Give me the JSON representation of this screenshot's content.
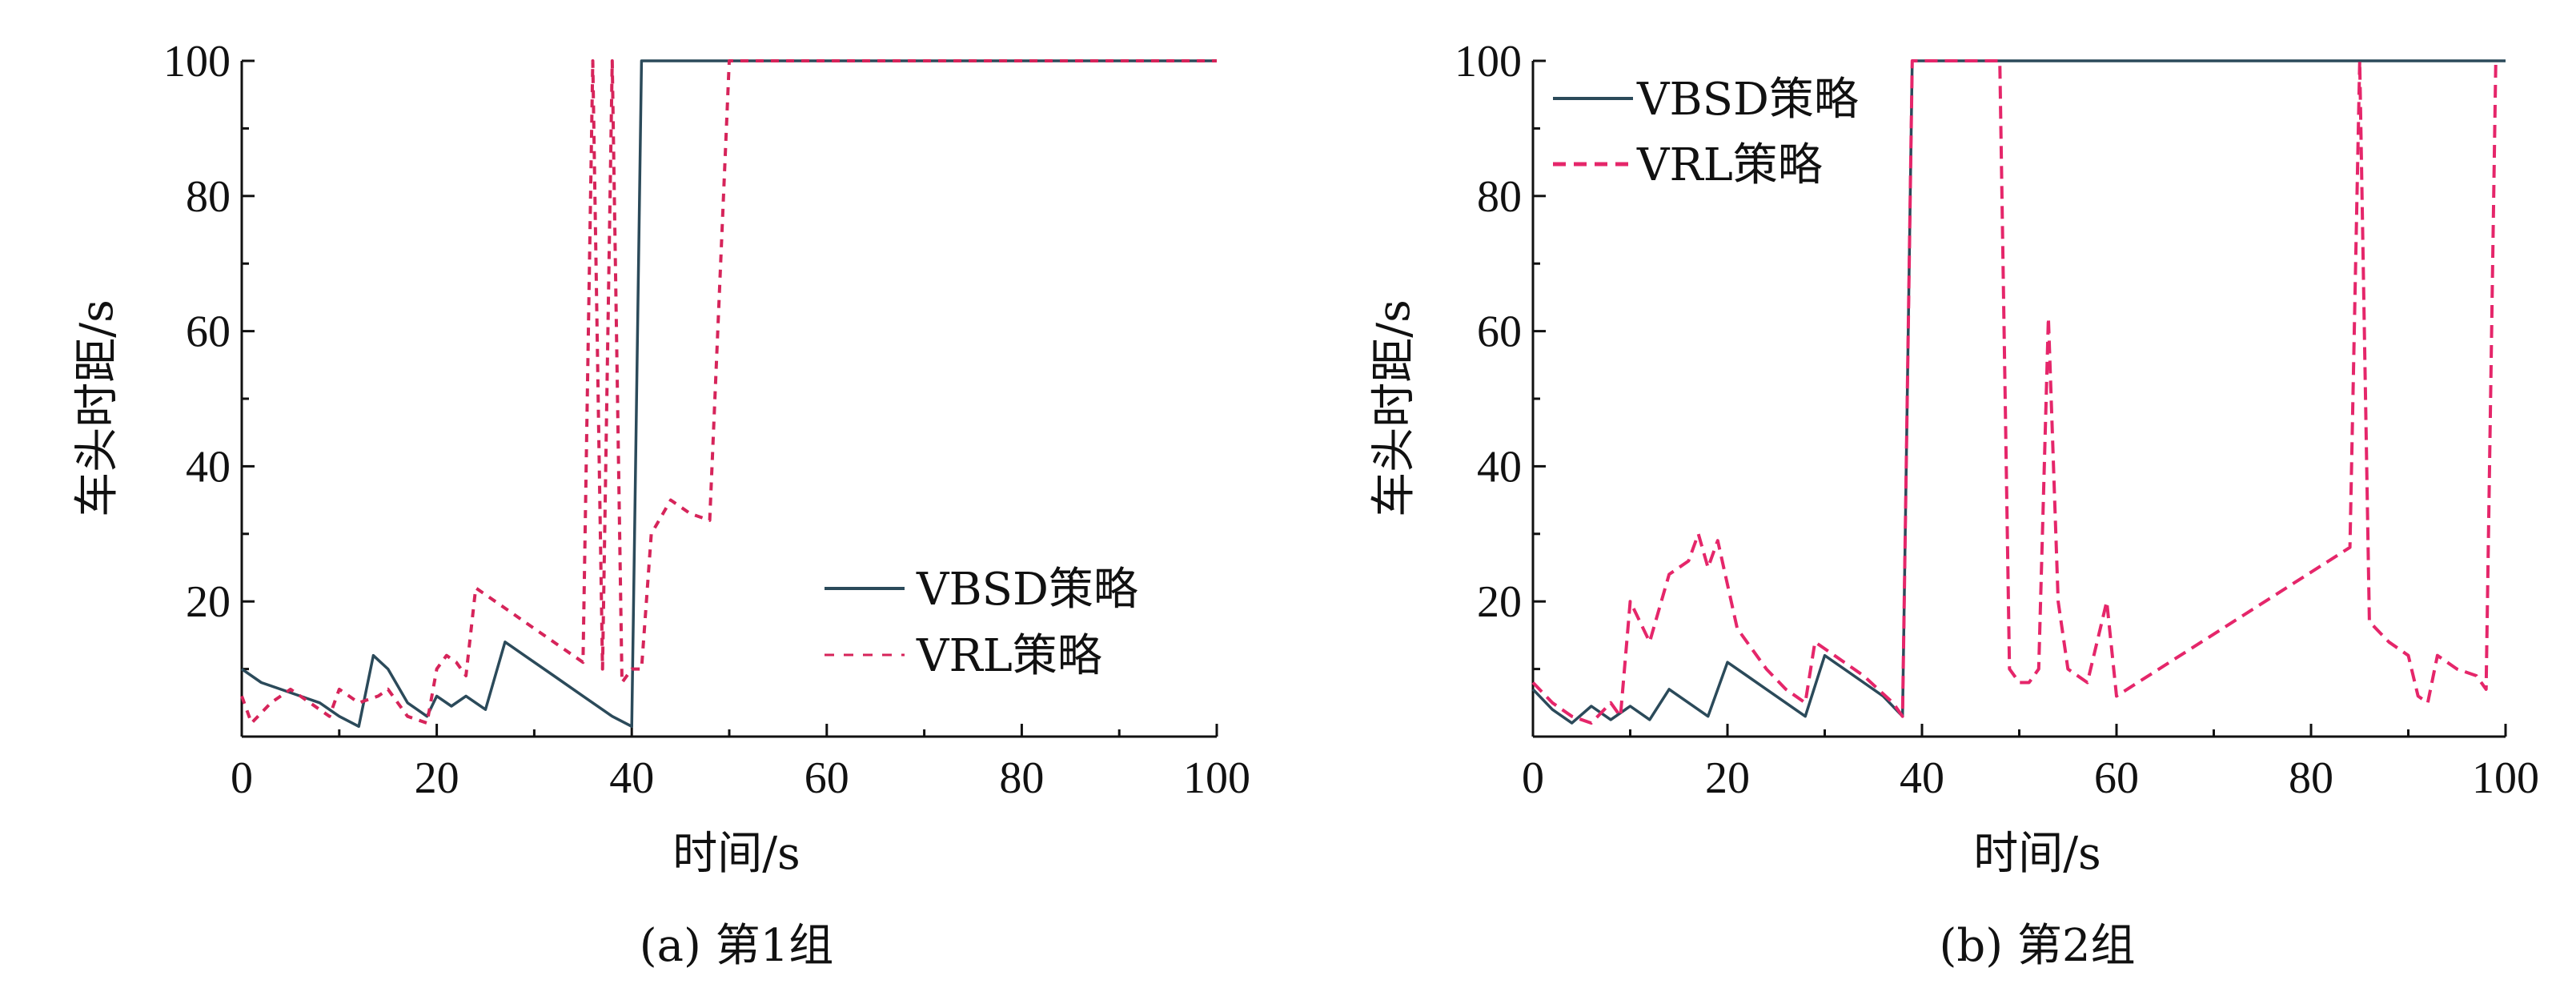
{
  "chart_data": [
    {
      "type": "line",
      "caption": "(a) 第1组",
      "xlabel": "时间/s",
      "ylabel": "车头时距/s",
      "xlim": [
        0,
        100
      ],
      "ylim": [
        0,
        100
      ],
      "xticks": [
        "0",
        "20",
        "40",
        "60",
        "80",
        "100"
      ],
      "yticks": [
        "20",
        "40",
        "60",
        "80",
        "100"
      ],
      "legend_position": "center-right",
      "series": [
        {
          "name": "VBSD策略",
          "color": "#2b4a5a",
          "style": "solid",
          "points": [
            [
              0,
              10
            ],
            [
              2,
              8
            ],
            [
              4,
              7
            ],
            [
              6,
              6
            ],
            [
              8,
              5
            ],
            [
              10,
              3
            ],
            [
              12,
              1.5
            ],
            [
              13.5,
              12
            ],
            [
              15,
              10
            ],
            [
              17,
              5
            ],
            [
              19,
              3
            ],
            [
              20,
              6
            ],
            [
              21.5,
              4.5
            ],
            [
              23,
              6
            ],
            [
              25,
              4
            ],
            [
              27,
              14
            ],
            [
              29,
              12
            ],
            [
              32,
              9
            ],
            [
              35,
              6
            ],
            [
              38,
              3
            ],
            [
              40,
              1.5
            ],
            [
              41,
              100
            ],
            [
              100,
              100
            ]
          ]
        },
        {
          "name": "VRL策略",
          "color": "#d6245a",
          "style": "dashed",
          "points": [
            [
              0,
              6
            ],
            [
              1,
              2
            ],
            [
              3,
              5
            ],
            [
              5,
              7
            ],
            [
              7,
              5
            ],
            [
              9,
              3
            ],
            [
              10,
              7
            ],
            [
              12,
              5
            ],
            [
              14,
              6
            ],
            [
              15,
              7
            ],
            [
              17,
              3
            ],
            [
              19,
              2
            ],
            [
              20,
              10
            ],
            [
              21,
              12
            ],
            [
              22,
              11
            ],
            [
              23,
              9
            ],
            [
              24,
              22
            ],
            [
              27,
              19
            ],
            [
              30,
              16
            ],
            [
              33,
              13
            ],
            [
              35,
              11
            ],
            [
              36,
              100
            ],
            [
              37,
              10
            ],
            [
              38,
              100
            ],
            [
              39,
              8
            ],
            [
              40,
              10
            ],
            [
              41,
              10
            ],
            [
              42,
              30
            ],
            [
              44,
              35
            ],
            [
              46,
              33
            ],
            [
              48,
              32
            ],
            [
              50,
              100
            ],
            [
              100,
              100
            ]
          ]
        }
      ]
    },
    {
      "type": "line",
      "caption": "(b) 第2组",
      "xlabel": "时间/s",
      "ylabel": "车头时距/s",
      "xlim": [
        0,
        100
      ],
      "ylim": [
        0,
        100
      ],
      "xticks": [
        "0",
        "20",
        "40",
        "60",
        "80",
        "100"
      ],
      "yticks": [
        "20",
        "40",
        "60",
        "80",
        "100"
      ],
      "legend_position": "top-left",
      "series": [
        {
          "name": "VBSD策略",
          "color": "#2b4a5a",
          "style": "solid",
          "points": [
            [
              0,
              7
            ],
            [
              2,
              4
            ],
            [
              4,
              2
            ],
            [
              6,
              4.5
            ],
            [
              8,
              2.5
            ],
            [
              10,
              4.5
            ],
            [
              12,
              2.5
            ],
            [
              14,
              7
            ],
            [
              16,
              5
            ],
            [
              18,
              3
            ],
            [
              20,
              11
            ],
            [
              22,
              9
            ],
            [
              24,
              7
            ],
            [
              26,
              5
            ],
            [
              28,
              3
            ],
            [
              30,
              12
            ],
            [
              32,
              10
            ],
            [
              34,
              8
            ],
            [
              36,
              6
            ],
            [
              38,
              3
            ],
            [
              39,
              100
            ],
            [
              100,
              100
            ]
          ]
        },
        {
          "name": "VRL策略",
          "color": "#e5266a",
          "style": "dashed",
          "points": [
            [
              0,
              8
            ],
            [
              2,
              5
            ],
            [
              4,
              3
            ],
            [
              6,
              2
            ],
            [
              8,
              5
            ],
            [
              9,
              3
            ],
            [
              10,
              20
            ],
            [
              12,
              14
            ],
            [
              14,
              24
            ],
            [
              16,
              26
            ],
            [
              17,
              30
            ],
            [
              18,
              25
            ],
            [
              19,
              29
            ],
            [
              21,
              16
            ],
            [
              22,
              14
            ],
            [
              24,
              10
            ],
            [
              26,
              7
            ],
            [
              28,
              5
            ],
            [
              29,
              14
            ],
            [
              31,
              12
            ],
            [
              34,
              9
            ],
            [
              37,
              5
            ],
            [
              38,
              3
            ],
            [
              39,
              100
            ],
            [
              48,
              100
            ],
            [
              49,
              10
            ],
            [
              50,
              8
            ],
            [
              51,
              8
            ],
            [
              52,
              10
            ],
            [
              53,
              62
            ],
            [
              54,
              20
            ],
            [
              55,
              10
            ],
            [
              57,
              8
            ],
            [
              59,
              20
            ],
            [
              60,
              6
            ],
            [
              84,
              28
            ],
            [
              85,
              100
            ],
            [
              86,
              17
            ],
            [
              88,
              14
            ],
            [
              90,
              12
            ],
            [
              91,
              6
            ],
            [
              92,
              5
            ],
            [
              93,
              12
            ],
            [
              95,
              10
            ],
            [
              97,
              9
            ],
            [
              98,
              7
            ],
            [
              99,
              100
            ]
          ]
        }
      ]
    }
  ]
}
